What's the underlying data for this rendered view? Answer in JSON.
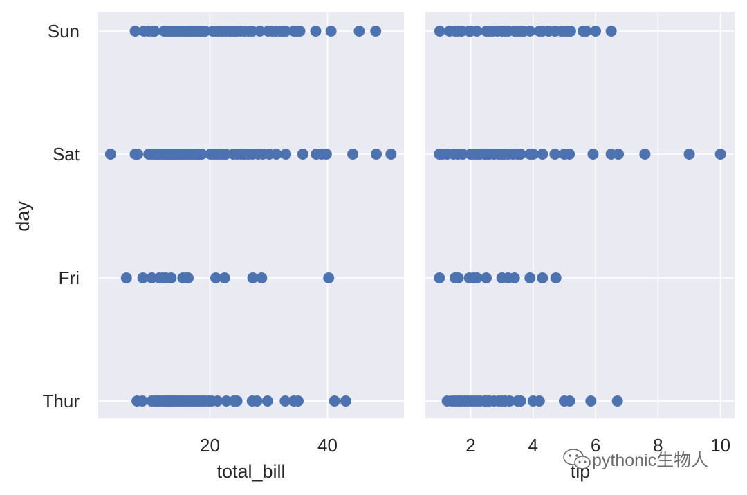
{
  "chart_data": [
    {
      "type": "scatter",
      "panel": "left",
      "xlabel": "total_bill",
      "ylabel": "day",
      "categories": [
        "Sun",
        "Sat",
        "Fri",
        "Thur"
      ],
      "xlim": [
        1.0,
        53.0
      ],
      "xticks": [
        20,
        40
      ],
      "xtick_labels": [
        "20",
        "40"
      ],
      "grid": true,
      "series": [
        {
          "category": "Sun",
          "x": [
            7.3,
            8.8,
            9.6,
            10.3,
            10.6,
            12.2,
            12.7,
            13.1,
            13.4,
            13.9,
            14.3,
            14.8,
            15.4,
            15.7,
            16.2,
            16.6,
            17.0,
            17.3,
            17.8,
            18.3,
            18.7,
            19.2,
            20.5,
            21.0,
            21.5,
            22.1,
            22.7,
            23.3,
            23.8,
            24.3,
            24.6,
            25.2,
            25.9,
            26.6,
            27.2,
            28.5,
            29.9,
            30.6,
            31.2,
            31.9,
            32.4,
            32.9,
            34.3,
            34.8,
            35.3,
            38.0,
            40.6,
            45.4,
            48.2
          ]
        },
        {
          "category": "Sat",
          "x": [
            3.1,
            7.3,
            7.7,
            9.6,
            10.1,
            10.6,
            11.0,
            11.4,
            11.9,
            12.3,
            12.7,
            13.1,
            13.5,
            13.9,
            14.3,
            14.7,
            15.1,
            15.5,
            16.0,
            16.4,
            16.8,
            17.3,
            17.8,
            18.2,
            18.6,
            20.1,
            20.7,
            21.1,
            21.6,
            22.2,
            22.7,
            24.0,
            24.6,
            25.3,
            25.9,
            26.5,
            27.2,
            28.2,
            29.0,
            30.1,
            31.3,
            32.9,
            35.8,
            38.1,
            39.0,
            39.8,
            44.3,
            48.3,
            50.8
          ]
        },
        {
          "category": "Fri",
          "x": [
            5.8,
            8.6,
            10.1,
            11.4,
            12.0,
            12.5,
            13.4,
            15.4,
            16.0,
            16.3,
            21.0,
            22.5,
            27.3,
            28.8,
            40.2
          ]
        },
        {
          "category": "Thur",
          "x": [
            7.6,
            8.5,
            10.1,
            10.6,
            11.0,
            11.4,
            11.9,
            12.3,
            12.7,
            13.1,
            13.5,
            13.9,
            14.3,
            14.7,
            15.1,
            15.5,
            16.0,
            16.5,
            17.0,
            17.5,
            17.9,
            18.3,
            18.8,
            19.2,
            19.8,
            20.3,
            21.3,
            22.8,
            24.1,
            24.6,
            27.2,
            28.0,
            29.8,
            32.8,
            34.3,
            35.0,
            41.2,
            43.1
          ]
        }
      ]
    },
    {
      "type": "scatter",
      "panel": "right",
      "xlabel": "tip",
      "ylabel": "",
      "categories": [
        "Sun",
        "Sat",
        "Fri",
        "Thur"
      ],
      "xlim": [
        0.55,
        10.45
      ],
      "xticks": [
        2,
        4,
        6,
        8,
        10
      ],
      "xtick_labels": [
        "2",
        "4",
        "6",
        "8",
        "10"
      ],
      "grid": true,
      "series": [
        {
          "category": "Sun",
          "x": [
            1.01,
            1.32,
            1.5,
            1.6,
            1.71,
            1.95,
            2.0,
            2.2,
            2.5,
            2.6,
            2.7,
            2.85,
            3.0,
            3.1,
            3.2,
            3.4,
            3.5,
            3.6,
            3.7,
            3.9,
            4.2,
            4.3,
            4.5,
            4.7,
            4.9,
            5.0,
            5.1,
            5.2,
            5.6,
            5.7,
            6.0,
            6.5
          ]
        },
        {
          "category": "Sat",
          "x": [
            1.0,
            1.1,
            1.25,
            1.45,
            1.6,
            1.75,
            2.0,
            2.1,
            2.2,
            2.3,
            2.45,
            2.5,
            2.6,
            2.75,
            2.9,
            3.0,
            3.08,
            3.2,
            3.35,
            3.5,
            3.6,
            3.9,
            4.0,
            4.3,
            4.7,
            5.0,
            5.16,
            5.92,
            6.5,
            6.73,
            7.58,
            9.0,
            10.0
          ]
        },
        {
          "category": "Fri",
          "x": [
            1.0,
            1.5,
            1.6,
            1.96,
            2.1,
            2.2,
            2.5,
            3.0,
            3.2,
            3.4,
            3.9,
            4.3,
            4.73
          ]
        },
        {
          "category": "Thur",
          "x": [
            1.25,
            1.4,
            1.5,
            1.6,
            1.68,
            1.8,
            1.9,
            2.0,
            2.1,
            2.2,
            2.3,
            2.45,
            2.5,
            2.6,
            2.75,
            2.9,
            3.0,
            3.1,
            3.25,
            3.5,
            3.6,
            4.0,
            4.2,
            5.0,
            5.17,
            5.85,
            6.7
          ]
        }
      ]
    }
  ],
  "colors": {
    "marker": "#4c72b0",
    "axes_face": "#eaeaf2",
    "grid": "#ffffff",
    "text": "#262626",
    "watermark": "#6b6b6b"
  },
  "watermark": {
    "icon": "wechat-icon",
    "text": "pythonic生物人"
  }
}
